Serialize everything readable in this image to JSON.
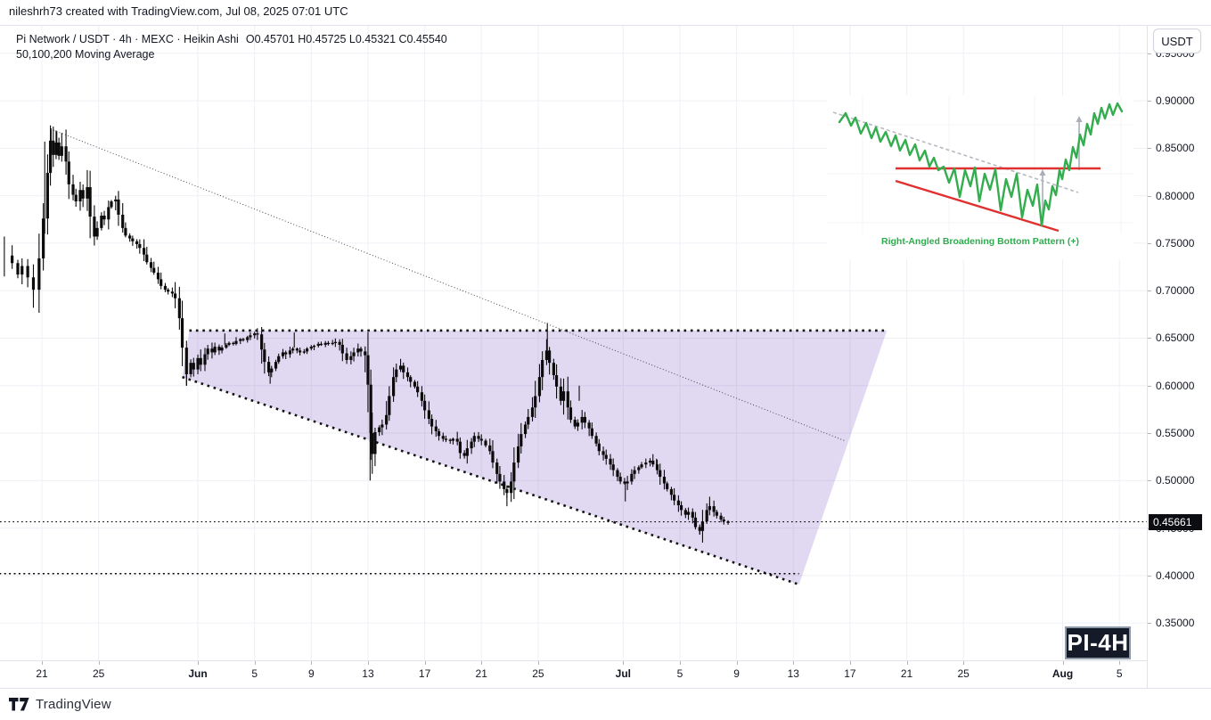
{
  "attribution": "nileshrh73 created with TradingView.com, Jul 08, 2025 07:01 UTC",
  "legend": {
    "symbol_line": "Pi Network / USDT · 4h · MEXC · Heikin Ashi",
    "ohlc_text": "O0.45701  H0.45725  L0.45321  C0.45540",
    "indicator_line": "50,100,200 Moving Average"
  },
  "axis_panel": {
    "currency_button": "USDT",
    "price_labels": [
      {
        "text": "0.95000",
        "value": 0.95
      },
      {
        "text": "0.90000",
        "value": 0.9
      },
      {
        "text": "0.85000",
        "value": 0.85
      },
      {
        "text": "0.80000",
        "value": 0.8
      },
      {
        "text": "0.75000",
        "value": 0.75
      },
      {
        "text": "0.70000",
        "value": 0.7
      },
      {
        "text": "0.65000",
        "value": 0.65
      },
      {
        "text": "0.60000",
        "value": 0.6
      },
      {
        "text": "0.55000",
        "value": 0.55
      },
      {
        "text": "0.50000",
        "value": 0.5
      },
      {
        "text": "0.45000",
        "value": 0.45
      },
      {
        "text": "0.40000",
        "value": 0.4
      },
      {
        "text": "0.35000",
        "value": 0.35
      }
    ],
    "current_price_tag": {
      "text": "0.45661",
      "value": 0.45661
    }
  },
  "time_axis": {
    "labels": [
      {
        "text": "21",
        "day": 3,
        "bold": false
      },
      {
        "text": "25",
        "day": 7,
        "bold": false
      },
      {
        "text": "Jun",
        "day": 14,
        "bold": true
      },
      {
        "text": "5",
        "day": 18,
        "bold": false
      },
      {
        "text": "9",
        "day": 22,
        "bold": false
      },
      {
        "text": "13",
        "day": 26,
        "bold": false
      },
      {
        "text": "17",
        "day": 30,
        "bold": false
      },
      {
        "text": "21",
        "day": 34,
        "bold": false
      },
      {
        "text": "25",
        "day": 38,
        "bold": false
      },
      {
        "text": "Jul",
        "day": 44,
        "bold": true
      },
      {
        "text": "5",
        "day": 48,
        "bold": false
      },
      {
        "text": "9",
        "day": 52,
        "bold": false
      },
      {
        "text": "13",
        "day": 56,
        "bold": false
      },
      {
        "text": "17",
        "day": 60,
        "bold": false
      },
      {
        "text": "21",
        "day": 64,
        "bold": false
      },
      {
        "text": "25",
        "day": 68,
        "bold": false
      },
      {
        "text": "Aug",
        "day": 75,
        "bold": true
      },
      {
        "text": "5",
        "day": 79,
        "bold": false
      }
    ]
  },
  "watermark_badge": "PI-4H",
  "footer": {
    "brand": "TradingView"
  },
  "colors": {
    "background": "#ffffff",
    "grid": "#eef0f6",
    "text": "#131722",
    "border": "#e0e3eb",
    "candle": "#0b0b0b",
    "drawing_dots": "#111111",
    "pattern_fill": "rgba(103,58,183,0.20)",
    "price_tag_bg": "#0b0d12",
    "badge_bg": "#151a28",
    "badge_border": "#8e99a9"
  },
  "inset": {
    "caption": "Right-Angled Broadening Bottom Pattern (+)",
    "caption_color": "#2fab4f",
    "zigzag_color": "#33ad4e",
    "resistance_color": "#e03131",
    "support_color": "#e03131",
    "dashed_color": "#b6bac3",
    "arrow_color": "#a9aeb8",
    "grid_color": "#f4f4f4",
    "dashed_line": [
      7,
      19,
      282,
      109
    ],
    "resistance_line": [
      77,
      82,
      307,
      82
    ],
    "support_line": [
      77,
      96,
      260,
      152
    ],
    "arrows": [
      [
        242,
        144,
        242,
        84
      ],
      [
        283,
        84,
        283,
        24
      ]
    ],
    "grid_v": [
      40,
      137,
      233,
      330
    ],
    "grid_h": [
      33,
      88,
      143
    ],
    "zigzag": [
      [
        14,
        30
      ],
      [
        21,
        20
      ],
      [
        27,
        34
      ],
      [
        32,
        25
      ],
      [
        38,
        43
      ],
      [
        44,
        31
      ],
      [
        50,
        48
      ],
      [
        55,
        36
      ],
      [
        60,
        52
      ],
      [
        66,
        41
      ],
      [
        72,
        57
      ],
      [
        77,
        45
      ],
      [
        82,
        62
      ],
      [
        88,
        50
      ],
      [
        93,
        67
      ],
      [
        99,
        55
      ],
      [
        104,
        73
      ],
      [
        110,
        62
      ],
      [
        115,
        80
      ],
      [
        120,
        70
      ],
      [
        125,
        84
      ],
      [
        131,
        80
      ],
      [
        137,
        98
      ],
      [
        143,
        82
      ],
      [
        149,
        114
      ],
      [
        155,
        84
      ],
      [
        161,
        102
      ],
      [
        166,
        81
      ],
      [
        171,
        119
      ],
      [
        177,
        88
      ],
      [
        183,
        106
      ],
      [
        189,
        83
      ],
      [
        195,
        129
      ],
      [
        201,
        94
      ],
      [
        207,
        114
      ],
      [
        213,
        88
      ],
      [
        219,
        137
      ],
      [
        225,
        106
      ],
      [
        231,
        124
      ],
      [
        236,
        100
      ],
      [
        241,
        146
      ],
      [
        245,
        118
      ],
      [
        249,
        128
      ],
      [
        253,
        102
      ],
      [
        257,
        112
      ],
      [
        261,
        84
      ],
      [
        264,
        94
      ],
      [
        268,
        72
      ],
      [
        272,
        84
      ],
      [
        276,
        58
      ],
      [
        280,
        70
      ],
      [
        284,
        44
      ],
      [
        288,
        56
      ],
      [
        292,
        32
      ],
      [
        296,
        44
      ],
      [
        300,
        20
      ],
      [
        304,
        32
      ],
      [
        308,
        14
      ],
      [
        312,
        26
      ],
      [
        317,
        10
      ],
      [
        321,
        22
      ],
      [
        326,
        9
      ],
      [
        331,
        18
      ]
    ]
  },
  "chart_data": {
    "type": "candlestick",
    "subtype": "Heikin Ashi",
    "symbol": "Pi Network / USDT",
    "exchange": "MEXC",
    "interval": "4h",
    "title": "Pi Network / USDT · 4h · MEXC · Heikin Ashi",
    "ohlc_display": {
      "open": 0.45701,
      "high": 0.45725,
      "low": 0.45321,
      "close": 0.4554
    },
    "current_price": 0.45661,
    "x_unit": "days since 2025-05-18",
    "x_range": [
      0,
      80.9
    ],
    "y_range": [
      0.31,
      0.979
    ],
    "gridline_step": 0.05,
    "grid": true,
    "legend_position": "top-left",
    "price_path": [
      [
        0.4,
        0.737
      ],
      [
        0.9,
        0.729
      ],
      [
        1.3,
        0.717
      ],
      [
        1.6,
        0.726
      ],
      [
        2.0,
        0.714
      ],
      [
        2.4,
        0.701
      ],
      [
        2.8,
        0.734
      ],
      [
        3.1,
        0.776
      ],
      [
        3.4,
        0.824
      ],
      [
        3.6,
        0.858
      ],
      [
        3.8,
        0.843
      ],
      [
        4.0,
        0.856
      ],
      [
        4.2,
        0.842
      ],
      [
        4.4,
        0.852
      ],
      [
        4.7,
        0.836
      ],
      [
        4.9,
        0.812
      ],
      [
        5.2,
        0.801
      ],
      [
        5.4,
        0.794
      ],
      [
        5.7,
        0.806
      ],
      [
        5.9,
        0.797
      ],
      [
        6.2,
        0.809
      ],
      [
        6.4,
        0.778
      ],
      [
        6.7,
        0.757
      ],
      [
        6.9,
        0.766
      ],
      [
        7.2,
        0.779
      ],
      [
        7.4,
        0.775
      ],
      [
        7.7,
        0.788
      ],
      [
        7.9,
        0.794
      ],
      [
        8.2,
        0.796
      ],
      [
        8.4,
        0.78
      ],
      [
        8.7,
        0.766
      ],
      [
        8.9,
        0.758
      ],
      [
        9.2,
        0.755
      ],
      [
        9.4,
        0.752
      ],
      [
        9.7,
        0.749
      ],
      [
        9.9,
        0.745
      ],
      [
        10.2,
        0.738
      ],
      [
        10.4,
        0.73
      ],
      [
        10.7,
        0.724
      ],
      [
        10.9,
        0.719
      ],
      [
        11.2,
        0.712
      ],
      [
        11.4,
        0.705
      ],
      [
        11.7,
        0.701
      ],
      [
        11.9,
        0.699
      ],
      [
        12.2,
        0.697
      ],
      [
        12.4,
        0.692
      ],
      [
        12.7,
        0.671
      ],
      [
        12.9,
        0.64
      ],
      [
        13.2,
        0.612
      ],
      [
        13.5,
        0.624
      ],
      [
        13.7,
        0.617
      ],
      [
        14.0,
        0.629
      ],
      [
        14.2,
        0.622
      ],
      [
        14.5,
        0.633
      ],
      [
        14.7,
        0.639
      ],
      [
        15.0,
        0.635
      ],
      [
        15.2,
        0.641
      ],
      [
        15.5,
        0.637
      ],
      [
        15.7,
        0.64
      ],
      [
        16.0,
        0.643
      ],
      [
        16.2,
        0.645
      ],
      [
        16.5,
        0.644
      ],
      [
        16.7,
        0.647
      ],
      [
        17.0,
        0.649
      ],
      [
        17.2,
        0.648
      ],
      [
        17.5,
        0.651
      ],
      [
        17.7,
        0.653
      ],
      [
        18.0,
        0.655
      ],
      [
        18.2,
        0.654
      ],
      [
        18.5,
        0.638
      ],
      [
        18.7,
        0.625
      ],
      [
        19.0,
        0.614
      ],
      [
        19.2,
        0.618
      ],
      [
        19.5,
        0.625
      ],
      [
        19.7,
        0.631
      ],
      [
        20.0,
        0.635
      ],
      [
        20.2,
        0.633
      ],
      [
        20.5,
        0.637
      ],
      [
        20.7,
        0.639
      ],
      [
        21.0,
        0.637
      ],
      [
        21.2,
        0.635
      ],
      [
        21.5,
        0.636
      ],
      [
        21.7,
        0.639
      ],
      [
        22.0,
        0.641
      ],
      [
        22.2,
        0.642
      ],
      [
        22.5,
        0.644
      ],
      [
        22.7,
        0.643
      ],
      [
        23.0,
        0.645
      ],
      [
        23.2,
        0.644
      ],
      [
        23.5,
        0.645
      ],
      [
        23.7,
        0.646
      ],
      [
        24.0,
        0.643
      ],
      [
        24.2,
        0.634
      ],
      [
        24.5,
        0.627
      ],
      [
        24.8,
        0.631
      ],
      [
        25.0,
        0.635
      ],
      [
        25.3,
        0.639
      ],
      [
        25.5,
        0.636
      ],
      [
        25.8,
        0.632
      ],
      [
        26.0,
        0.601
      ],
      [
        26.2,
        0.55
      ],
      [
        26.3,
        0.528
      ],
      [
        26.5,
        0.551
      ],
      [
        26.8,
        0.556
      ],
      [
        27.0,
        0.559
      ],
      [
        27.3,
        0.569
      ],
      [
        27.5,
        0.589
      ],
      [
        27.8,
        0.609
      ],
      [
        28.0,
        0.617
      ],
      [
        28.3,
        0.621
      ],
      [
        28.5,
        0.614
      ],
      [
        28.8,
        0.609
      ],
      [
        29.0,
        0.604
      ],
      [
        29.3,
        0.599
      ],
      [
        29.5,
        0.593
      ],
      [
        29.8,
        0.584
      ],
      [
        30.0,
        0.574
      ],
      [
        30.3,
        0.565
      ],
      [
        30.5,
        0.557
      ],
      [
        30.8,
        0.552
      ],
      [
        31.0,
        0.547
      ],
      [
        31.3,
        0.544
      ],
      [
        31.5,
        0.543
      ],
      [
        31.8,
        0.542
      ],
      [
        32.0,
        0.544
      ],
      [
        32.3,
        0.541
      ],
      [
        32.5,
        0.529
      ],
      [
        32.8,
        0.526
      ],
      [
        33.0,
        0.534
      ],
      [
        33.3,
        0.541
      ],
      [
        33.5,
        0.547
      ],
      [
        33.8,
        0.544
      ],
      [
        34.0,
        0.542
      ],
      [
        34.3,
        0.537
      ],
      [
        34.6,
        0.531
      ],
      [
        34.8,
        0.519
      ],
      [
        35.1,
        0.507
      ],
      [
        35.3,
        0.499
      ],
      [
        35.6,
        0.491
      ],
      [
        35.8,
        0.487
      ],
      [
        36.1,
        0.499
      ],
      [
        36.3,
        0.519
      ],
      [
        36.6,
        0.536
      ],
      [
        36.8,
        0.549
      ],
      [
        37.1,
        0.559
      ],
      [
        37.3,
        0.567
      ],
      [
        37.6,
        0.577
      ],
      [
        37.8,
        0.589
      ],
      [
        38.1,
        0.609
      ],
      [
        38.3,
        0.627
      ],
      [
        38.6,
        0.637
      ],
      [
        38.8,
        0.624
      ],
      [
        39.1,
        0.611
      ],
      [
        39.3,
        0.599
      ],
      [
        39.6,
        0.584
      ],
      [
        39.8,
        0.594
      ],
      [
        40.1,
        0.577
      ],
      [
        40.3,
        0.564
      ],
      [
        40.6,
        0.557
      ],
      [
        40.8,
        0.561
      ],
      [
        41.1,
        0.567
      ],
      [
        41.3,
        0.561
      ],
      [
        41.6,
        0.555
      ],
      [
        41.8,
        0.547
      ],
      [
        42.1,
        0.539
      ],
      [
        42.3,
        0.531
      ],
      [
        42.6,
        0.527
      ],
      [
        42.8,
        0.523
      ],
      [
        43.1,
        0.517
      ],
      [
        43.3,
        0.511
      ],
      [
        43.6,
        0.504
      ],
      [
        43.8,
        0.499
      ],
      [
        44.1,
        0.497
      ],
      [
        44.3,
        0.499
      ],
      [
        44.6,
        0.507
      ],
      [
        44.8,
        0.511
      ],
      [
        45.1,
        0.514
      ],
      [
        45.3,
        0.517
      ],
      [
        45.6,
        0.519
      ],
      [
        45.9,
        0.521
      ],
      [
        46.1,
        0.517
      ],
      [
        46.4,
        0.511
      ],
      [
        46.6,
        0.504
      ],
      [
        46.9,
        0.497
      ],
      [
        47.1,
        0.491
      ],
      [
        47.4,
        0.485
      ],
      [
        47.6,
        0.479
      ],
      [
        47.9,
        0.474
      ],
      [
        48.1,
        0.469
      ],
      [
        48.4,
        0.464
      ],
      [
        48.6,
        0.467
      ],
      [
        48.9,
        0.461
      ],
      [
        49.1,
        0.451
      ],
      [
        49.4,
        0.447
      ],
      [
        49.6,
        0.457
      ],
      [
        49.9,
        0.469
      ],
      [
        50.1,
        0.473
      ],
      [
        50.4,
        0.467
      ],
      [
        50.6,
        0.463
      ],
      [
        50.9,
        0.459
      ],
      [
        51.1,
        0.457
      ],
      [
        51.4,
        0.4554
      ]
    ],
    "notable_wicks": [
      [
        0.35,
        0.715,
        0.757
      ],
      [
        2.4,
        0.695,
        0.71
      ],
      [
        3.2,
        0.76,
        0.857
      ],
      [
        3.65,
        0.845,
        0.871
      ],
      [
        4.05,
        0.845,
        0.868
      ],
      [
        13.2,
        0.6,
        0.614
      ],
      [
        15.9,
        0.643,
        0.655
      ],
      [
        19.1,
        0.602,
        0.615
      ],
      [
        20.8,
        0.64,
        0.656
      ],
      [
        26.15,
        0.5,
        0.552
      ],
      [
        35.8,
        0.473,
        0.49
      ],
      [
        38.65,
        0.637,
        0.666
      ],
      [
        40.9,
        0.584,
        0.6
      ],
      [
        44.15,
        0.478,
        0.498
      ],
      [
        46.35,
        0.513,
        0.523
      ],
      [
        49.4,
        0.443,
        0.452
      ],
      [
        50.1,
        0.473,
        0.483
      ]
    ],
    "overlays": {
      "descending_trendline": {
        "from": [
          3.63,
          0.8702
        ],
        "to": [
          59.6,
          0.5421
        ],
        "style": "thin-dotted"
      },
      "pattern": {
        "name": "right-angled broadening wedge",
        "top_line_price": 0.658,
        "top_line_days": [
          13.4,
          62.6
        ],
        "bottom_line": {
          "from": [
            12.9,
            0.609
          ],
          "to": [
            56.4,
            0.3906
          ]
        },
        "fill": "lavender",
        "border_style": "dotted"
      },
      "current_price_line": {
        "price": 0.45661,
        "style": "dotted",
        "full_width": true
      },
      "secondary_dotted_line": {
        "price": 0.402,
        "from_day": 0,
        "to_day": 56.4
      }
    }
  }
}
